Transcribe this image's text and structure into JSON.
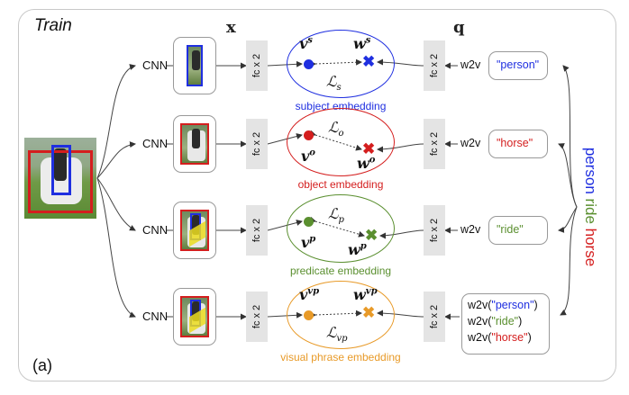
{
  "panel_title": "Train",
  "panel_letter": "(a)",
  "headers": {
    "x": "x",
    "q": "q"
  },
  "rows": [
    {
      "cnn": "CNN",
      "fc_left": "fc x 2",
      "fc_right": "fc x 2",
      "w2v": "w2v",
      "words": [
        "\"person\""
      ],
      "word_colors": [
        "#1f2fe0"
      ],
      "embedding_label": "subject embedding",
      "color": "#1f2fe0",
      "v_sup": "s",
      "w_sup": "s",
      "loss_sub": "s"
    },
    {
      "cnn": "CNN",
      "fc_left": "fc x 2",
      "fc_right": "fc x 2",
      "w2v": "w2v",
      "words": [
        "\"horse\""
      ],
      "word_colors": [
        "#d41e1e"
      ],
      "embedding_label": "object embedding",
      "color": "#d41e1e",
      "v_sup": "o",
      "w_sup": "o",
      "loss_sub": "o"
    },
    {
      "cnn": "CNN",
      "fc_left": "fc x 2",
      "fc_right": "fc x 2",
      "w2v": "w2v",
      "words": [
        "\"ride\""
      ],
      "word_colors": [
        "#5a8f2f"
      ],
      "embedding_label": "predicate embedding",
      "color": "#5a8f2f",
      "v_sup": "p",
      "w_sup": "p",
      "loss_sub": "p"
    },
    {
      "cnn": "CNN",
      "fc_left": "fc x 2",
      "fc_right": "fc x 2",
      "w2v": "w2v",
      "words": [
        "\"person\"",
        "\"ride\"",
        "\"horse\""
      ],
      "word_colors": [
        "#1f2fe0",
        "#5a8f2f",
        "#d41e1e"
      ],
      "embedding_label": "visual phrase embedding",
      "color": "#e89a28",
      "v_sup": "vp",
      "w_sup": "vp",
      "loss_sub": "vp"
    }
  ],
  "sentence": [
    {
      "text": "person",
      "color": "#1f2fe0"
    },
    {
      "text": "ride",
      "color": "#5a8f2f"
    },
    {
      "text": "horse",
      "color": "#d41e1e"
    }
  ]
}
